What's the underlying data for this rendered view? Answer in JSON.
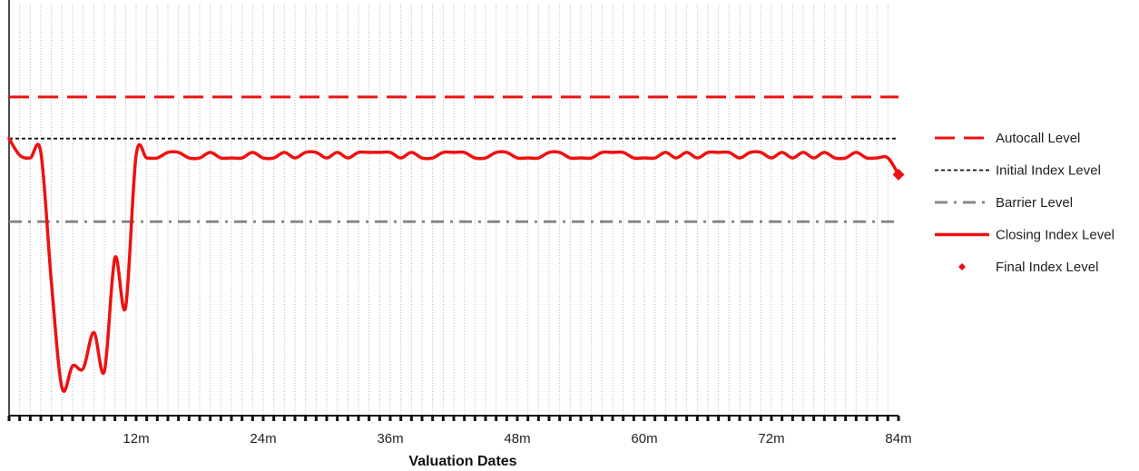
{
  "chart_data": {
    "type": "line",
    "title": "",
    "xlabel": "Valuation Dates",
    "ylabel": "",
    "x_unit": "months",
    "xlim": [
      0,
      84
    ],
    "ylim": [
      0,
      150
    ],
    "x_ticks": [
      {
        "value": 12,
        "label": "12m"
      },
      {
        "value": 24,
        "label": "24m"
      },
      {
        "value": 36,
        "label": "36m"
      },
      {
        "value": 48,
        "label": "48m"
      },
      {
        "value": 60,
        "label": "60m"
      },
      {
        "value": 72,
        "label": "72m"
      },
      {
        "value": 84,
        "label": "84m"
      }
    ],
    "grid": "vertical dotted gridlines at each monthly valuation date",
    "legend_position": "right",
    "reference_lines": [
      {
        "name": "Autocall Level",
        "value": 115,
        "style": "dashed",
        "color": "#ee1111"
      },
      {
        "name": "Initial Index Level",
        "value": 100,
        "style": "dotted",
        "color": "#111111"
      },
      {
        "name": "Barrier Level",
        "value": 70,
        "style": "dash-dot",
        "color": "#888888"
      }
    ],
    "series": [
      {
        "name": "Closing Index Level",
        "color": "#ee1111",
        "x": [
          0,
          1,
          2,
          3,
          4,
          5,
          6,
          7,
          8,
          9,
          10,
          11,
          12,
          13,
          14,
          15,
          16,
          17,
          18,
          19,
          20,
          21,
          22,
          23,
          24,
          25,
          26,
          27,
          28,
          29,
          30,
          31,
          32,
          33,
          34,
          35,
          36,
          37,
          38,
          39,
          40,
          41,
          42,
          43,
          44,
          45,
          46,
          47,
          48,
          49,
          50,
          51,
          52,
          53,
          54,
          55,
          56,
          57,
          58,
          59,
          60,
          61,
          62,
          63,
          64,
          65,
          66,
          67,
          68,
          69,
          70,
          71,
          72,
          73,
          74,
          75,
          76,
          77,
          78,
          79,
          80,
          81,
          82,
          83,
          84
        ],
        "values": [
          100,
          94,
          93,
          95,
          48,
          10,
          18,
          17,
          30,
          16,
          57,
          39,
          94,
          93,
          93,
          95,
          95,
          93,
          93,
          95,
          93,
          93,
          93,
          95,
          93,
          93,
          95,
          93,
          95,
          95,
          93,
          95,
          93,
          95,
          95,
          95,
          95,
          93,
          95,
          93,
          93,
          95,
          95,
          95,
          93,
          93,
          95,
          95,
          93,
          93,
          93,
          95,
          95,
          93,
          93,
          93,
          95,
          95,
          95,
          93,
          93,
          93,
          95,
          93,
          95,
          93,
          95,
          95,
          95,
          93,
          95,
          95,
          93,
          95,
          93,
          95,
          93,
          95,
          93,
          93,
          95,
          93,
          93,
          93,
          87
        ]
      },
      {
        "name": "Final Index Level",
        "color": "#ee1111",
        "x": [
          84
        ],
        "values": [
          87
        ],
        "marker": "diamond"
      }
    ]
  },
  "legend": {
    "items": [
      {
        "label": "Autocall Level",
        "style": "dashed",
        "color": "#ee1111"
      },
      {
        "label": "Initial Index Level",
        "style": "dotted",
        "color": "#111111"
      },
      {
        "label": "Barrier Level",
        "style": "dash-dot",
        "color": "#888888"
      },
      {
        "label": "Closing Index Level",
        "style": "solid",
        "color": "#ee1111"
      },
      {
        "label": "Final Index Level",
        "style": "diamond",
        "color": "#ee1111"
      }
    ]
  }
}
